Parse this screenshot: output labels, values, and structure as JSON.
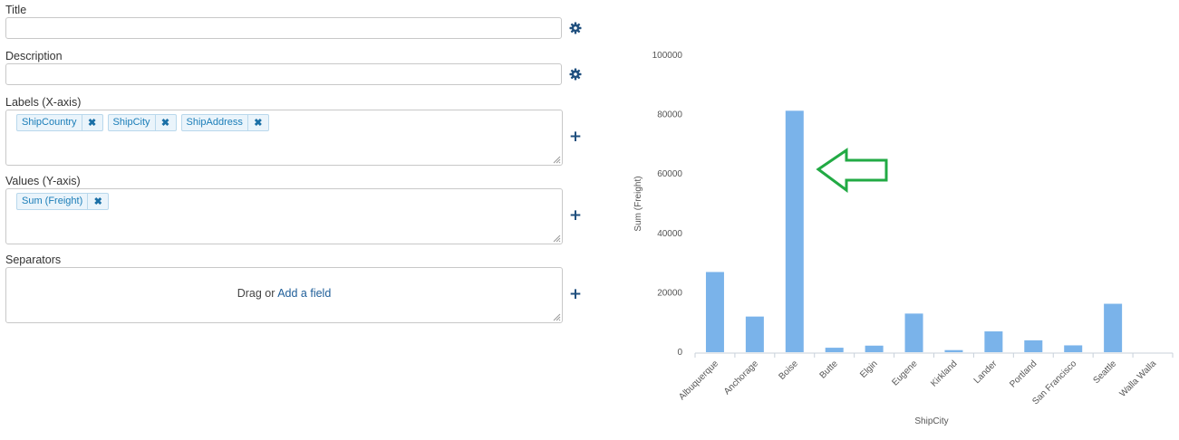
{
  "form": {
    "title": {
      "label": "Title",
      "value": ""
    },
    "description": {
      "label": "Description",
      "value": ""
    },
    "labels": {
      "label": "Labels (X-axis)",
      "chips": [
        "ShipCountry",
        "ShipCity",
        "ShipAddress"
      ]
    },
    "values": {
      "label": "Values (Y-axis)",
      "chips": [
        "Sum (Freight)"
      ]
    },
    "separators": {
      "label": "Separators",
      "drag_text": "Drag or",
      "add_link": "Add a field"
    },
    "remove_glyph": "✖",
    "plus_glyph": "+",
    "settings_icon": "gear-icon"
  },
  "colors": {
    "bar": "#7ab3ea",
    "arrow": "#22aa44",
    "accent": "#1f4f7e"
  },
  "chart_data": {
    "type": "bar",
    "categories": [
      "Albuquerque",
      "Anchorage",
      "Boise",
      "Butte",
      "Elgin",
      "Eugene",
      "Kirkland",
      "Lander",
      "Portland",
      "San Francisco",
      "Seattle",
      "Walla Walla"
    ],
    "values": [
      27000,
      12000,
      81300,
      1500,
      2200,
      13000,
      700,
      7000,
      4000,
      2300,
      16300,
      0
    ],
    "xlabel": "ShipCity",
    "ylabel": "Sum (Freight)",
    "ylim": [
      0,
      100000
    ],
    "yticks": [
      0,
      20000,
      40000,
      60000,
      80000,
      100000
    ],
    "grid": false
  }
}
